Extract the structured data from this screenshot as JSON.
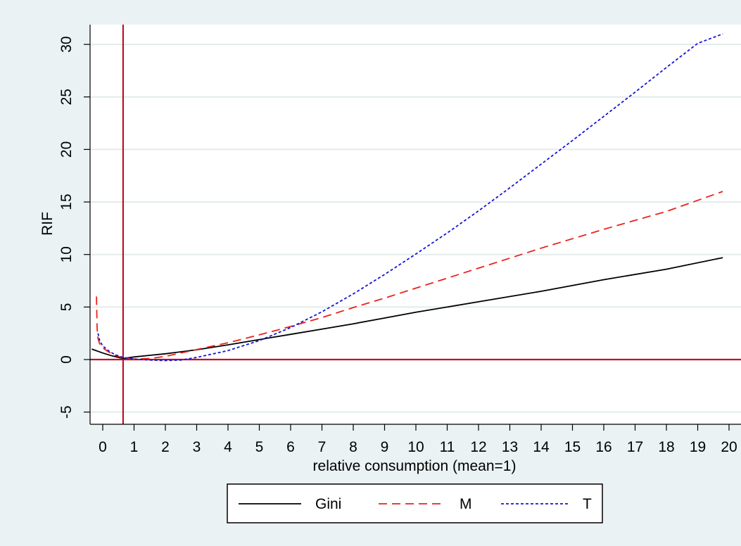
{
  "chart_data": {
    "type": "line",
    "xlabel": "relative consumption (mean=1)",
    "ylabel": "RIF",
    "xlim": [
      -0.4,
      20.3
    ],
    "ylim": [
      -6,
      32
    ],
    "xticks": [
      0,
      1,
      2,
      3,
      4,
      5,
      6,
      7,
      8,
      9,
      10,
      11,
      12,
      13,
      14,
      15,
      16,
      17,
      18,
      19,
      20
    ],
    "yticks": [
      -5,
      0,
      5,
      10,
      15,
      20,
      25,
      30
    ],
    "grid": "horizontal",
    "reference_lines": {
      "x": 0.65,
      "y": 0,
      "color": "#c0102a"
    },
    "legend_position": "bottom",
    "series": [
      {
        "name": "Gini",
        "color": "#000000",
        "dash": "none",
        "x": [
          -0.35,
          0,
          0.3,
          0.65,
          1,
          1.5,
          2,
          3,
          4,
          5,
          6,
          7,
          8,
          9,
          10,
          12,
          14,
          16,
          18,
          19.8
        ],
        "y": [
          1.0,
          0.62,
          0.35,
          0.1,
          0.25,
          0.4,
          0.55,
          0.93,
          1.4,
          1.9,
          2.4,
          2.9,
          3.4,
          3.95,
          4.5,
          5.5,
          6.5,
          7.6,
          8.6,
          9.7
        ]
      },
      {
        "name": "M",
        "color": "#e8231c",
        "dash": "12,7",
        "x": [
          -0.2,
          -0.18,
          -0.15,
          -0.1,
          0,
          0.2,
          0.4,
          0.65,
          1,
          1.5,
          2,
          3,
          4,
          5,
          6,
          7,
          8,
          9,
          10,
          12,
          14,
          16,
          18,
          19.8
        ],
        "y": [
          6.0,
          3.0,
          2.0,
          1.5,
          1.1,
          0.7,
          0.4,
          0.15,
          0.05,
          0.1,
          0.3,
          0.95,
          1.6,
          2.35,
          3.15,
          4.0,
          4.95,
          5.85,
          6.8,
          8.7,
          10.6,
          12.4,
          14.1,
          16.0
        ]
      },
      {
        "name": "T",
        "color": "#1515d4",
        "dash": "4,3",
        "x": [
          -0.15,
          -0.1,
          0,
          0.2,
          0.4,
          0.65,
          1,
          1.5,
          2,
          2.5,
          3,
          4,
          5,
          6,
          7,
          8,
          9,
          10,
          11,
          12,
          13,
          14,
          15,
          16,
          17,
          18,
          19,
          19.8
        ],
        "y": [
          2.5,
          1.8,
          1.3,
          0.8,
          0.45,
          0.2,
          0.05,
          -0.05,
          -0.1,
          -0.05,
          0.2,
          0.85,
          1.8,
          3.05,
          4.55,
          6.25,
          8.1,
          10.05,
          12.05,
          14.15,
          16.35,
          18.6,
          20.85,
          23.15,
          25.45,
          27.8,
          30.1,
          31.0
        ]
      }
    ]
  }
}
